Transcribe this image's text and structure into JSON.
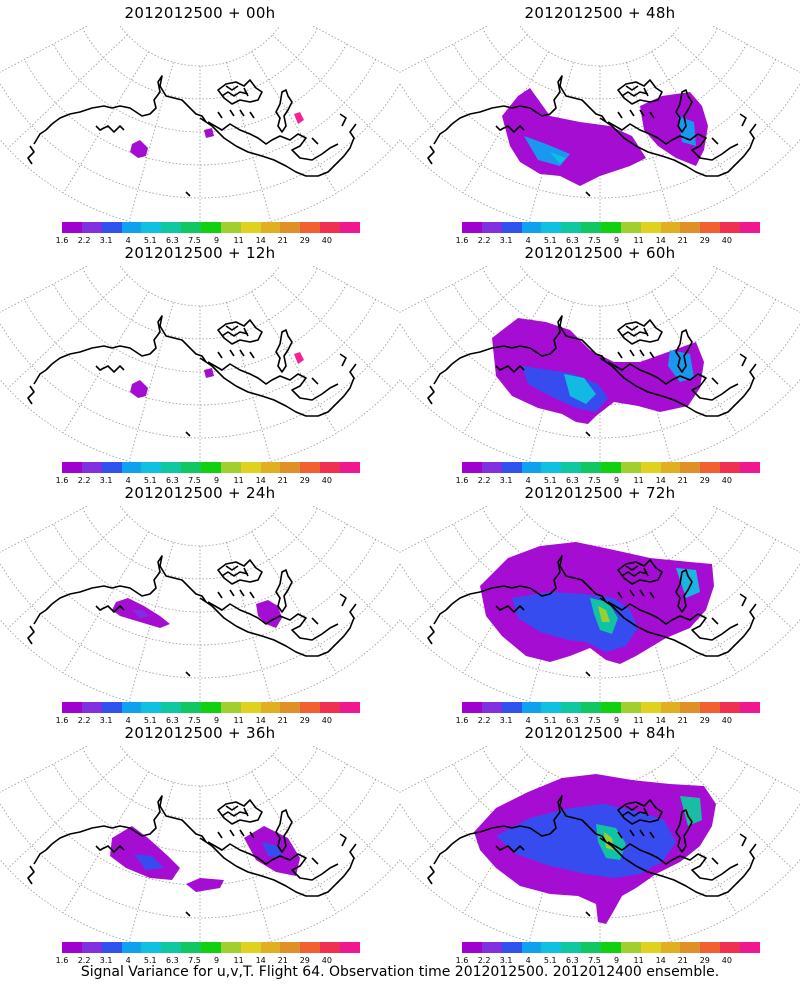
{
  "colorbar": {
    "colors": [
      "#a000d0",
      "#8030e0",
      "#3050f0",
      "#10a0f0",
      "#10c0e0",
      "#10c8a0",
      "#10c860",
      "#10d010",
      "#a0d030",
      "#e0d020",
      "#e0b020",
      "#e09028",
      "#f06030",
      "#f03050",
      "#f01890"
    ],
    "ticks": [
      "1.6",
      "2.2",
      "3.1",
      "4",
      "5.1",
      "6.3",
      "7.5",
      "9",
      "11",
      "14",
      "21",
      "29",
      "40"
    ]
  },
  "panels": [
    {
      "id": "p00",
      "title": "2012012500  + 00h",
      "intensity": 0
    },
    {
      "id": "p48",
      "title": "2012012500  + 48h",
      "intensity": 3
    },
    {
      "id": "p12",
      "title": "2012012500  + 12h",
      "intensity": 0
    },
    {
      "id": "p60",
      "title": "2012012500  + 60h",
      "intensity": 4
    },
    {
      "id": "p24",
      "title": "2012012500  + 24h",
      "intensity": 1
    },
    {
      "id": "p72",
      "title": "2012012500  + 72h",
      "intensity": 5
    },
    {
      "id": "p36",
      "title": "2012012500  + 36h",
      "intensity": 2
    },
    {
      "id": "p84",
      "title": "2012012500  + 84h",
      "intensity": 6
    }
  ],
  "caption": "Signal Variance for u,v,T. Flight 64. Observation time 2012012500. 2012012400 ensemble."
}
